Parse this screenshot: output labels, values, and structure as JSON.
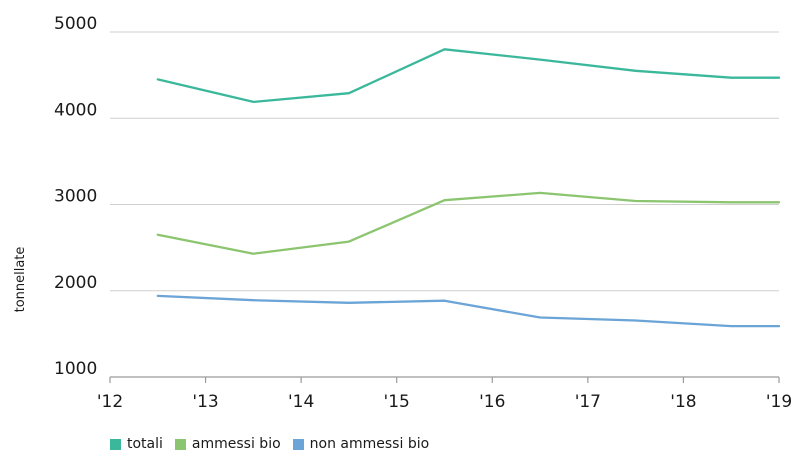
{
  "chart_data": {
    "type": "line",
    "ylabel": "tonnellate",
    "ylim": [
      1000,
      5000
    ],
    "yticks": [
      1000,
      2000,
      3000,
      4000,
      5000
    ],
    "xticks": [
      "'12",
      "'13",
      "'14",
      "'15",
      "'16",
      "'17",
      "'18",
      "'19"
    ],
    "x": [
      12.5,
      13.5,
      14.5,
      15.5,
      16.5,
      17.5,
      18.5,
      19.0
    ],
    "grid": "horizontal",
    "legend_position": "bottom-left",
    "series": [
      {
        "name": "totali",
        "color": "#3bb89c",
        "values": [
          4450,
          4190,
          4290,
          4800,
          4680,
          4550,
          4470,
          4470
        ]
      },
      {
        "name": "ammessi bio",
        "color": "#8cc56f",
        "values": [
          2650,
          2430,
          2570,
          3050,
          3135,
          3040,
          3025,
          3025
        ]
      },
      {
        "name": "non ammessi bio",
        "color": "#6ba4d6",
        "values": [
          1940,
          1890,
          1860,
          1885,
          1690,
          1655,
          1590,
          1590
        ]
      }
    ]
  }
}
